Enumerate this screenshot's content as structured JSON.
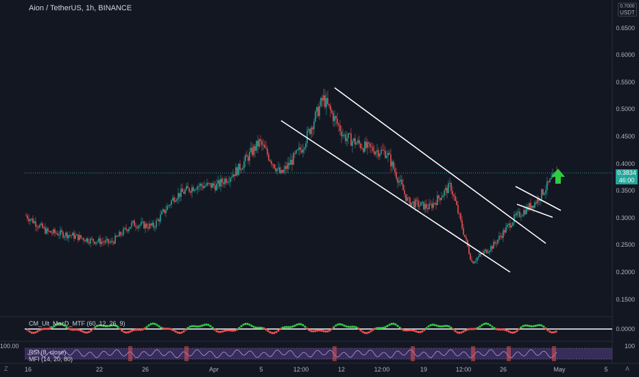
{
  "header": {
    "title": "Aion / TetherUS, 1h, BINANCE"
  },
  "currency_selector": {
    "top_label": "0.7000",
    "unit": "USDT"
  },
  "price_axis": {
    "labels": [
      "0.6500",
      "0.6000",
      "0.5500",
      "0.5000",
      "0.4500",
      "0.4000",
      "0.3500",
      "0.3000",
      "0.2500",
      "0.2000",
      "0.1500"
    ]
  },
  "current_price": {
    "price": "0.3834",
    "countdown": "46:00",
    "color": "#26a69a"
  },
  "time_axis": {
    "labels": [
      "16",
      "22",
      "26",
      "Apr",
      "5",
      "12:00",
      "12",
      "12:00",
      "19",
      "12:00",
      "26",
      "May",
      "5"
    ]
  },
  "indicators": {
    "macd": {
      "label": "CM_Ult_MacD_MTF (60, 12, 26, 9)",
      "axis_label": "0.0000"
    },
    "rsi": {
      "label": "RSI (8, close)",
      "axis_label": "100",
      "left_label": "100.00"
    },
    "mfi": {
      "label": "MFI (14, 20, 80)"
    }
  },
  "corner_labels": {
    "left": "Z",
    "right": "A"
  },
  "colors": {
    "background": "#131722",
    "up": "#26a69a",
    "down": "#ef5350",
    "trendline": "#ffffff",
    "arrow": "#2ecc40"
  },
  "chart_data": {
    "type": "candlestick",
    "title": "Aion / TetherUS, 1h, BINANCE",
    "y_unit": "USDT",
    "ylim": [
      0.12,
      0.7
    ],
    "x_ticks": [
      "16",
      "22",
      "26",
      "Apr",
      "5",
      "12:00",
      "12",
      "12:00",
      "19",
      "12:00",
      "26",
      "May",
      "5"
    ],
    "close_path": [
      {
        "x": "16",
        "close": 0.305
      },
      {
        "x": "18",
        "close": 0.275
      },
      {
        "x": "20",
        "close": 0.27
      },
      {
        "x": "22",
        "close": 0.26
      },
      {
        "x": "24",
        "close": 0.255
      },
      {
        "x": "26",
        "close": 0.29
      },
      {
        "x": "28",
        "close": 0.285
      },
      {
        "x": "30",
        "close": 0.34
      },
      {
        "x": "Apr 1",
        "close": 0.36
      },
      {
        "x": "Apr 3",
        "close": 0.36
      },
      {
        "x": "Apr 5",
        "close": 0.39
      },
      {
        "x": "Apr 7",
        "close": 0.44
      },
      {
        "x": "Apr 8",
        "close": 0.38
      },
      {
        "x": "Apr 10",
        "close": 0.43
      },
      {
        "x": "Apr 11",
        "close": 0.52
      },
      {
        "x": "Apr 13",
        "close": 0.45
      },
      {
        "x": "Apr 15",
        "close": 0.43
      },
      {
        "x": "Apr 17",
        "close": 0.42
      },
      {
        "x": "Apr 19",
        "close": 0.33
      },
      {
        "x": "Apr 21",
        "close": 0.32
      },
      {
        "x": "Apr 23",
        "close": 0.36
      },
      {
        "x": "Apr 24",
        "close": 0.22
      },
      {
        "x": "Apr 26",
        "close": 0.25
      },
      {
        "x": "Apr 27",
        "close": 0.3
      },
      {
        "x": "Apr 29",
        "close": 0.33
      },
      {
        "x": "Apr 30",
        "close": 0.3834
      }
    ],
    "current_price": 0.3834,
    "annotations": [
      "descending channel",
      "bull flag",
      "breakout arrow"
    ]
  }
}
